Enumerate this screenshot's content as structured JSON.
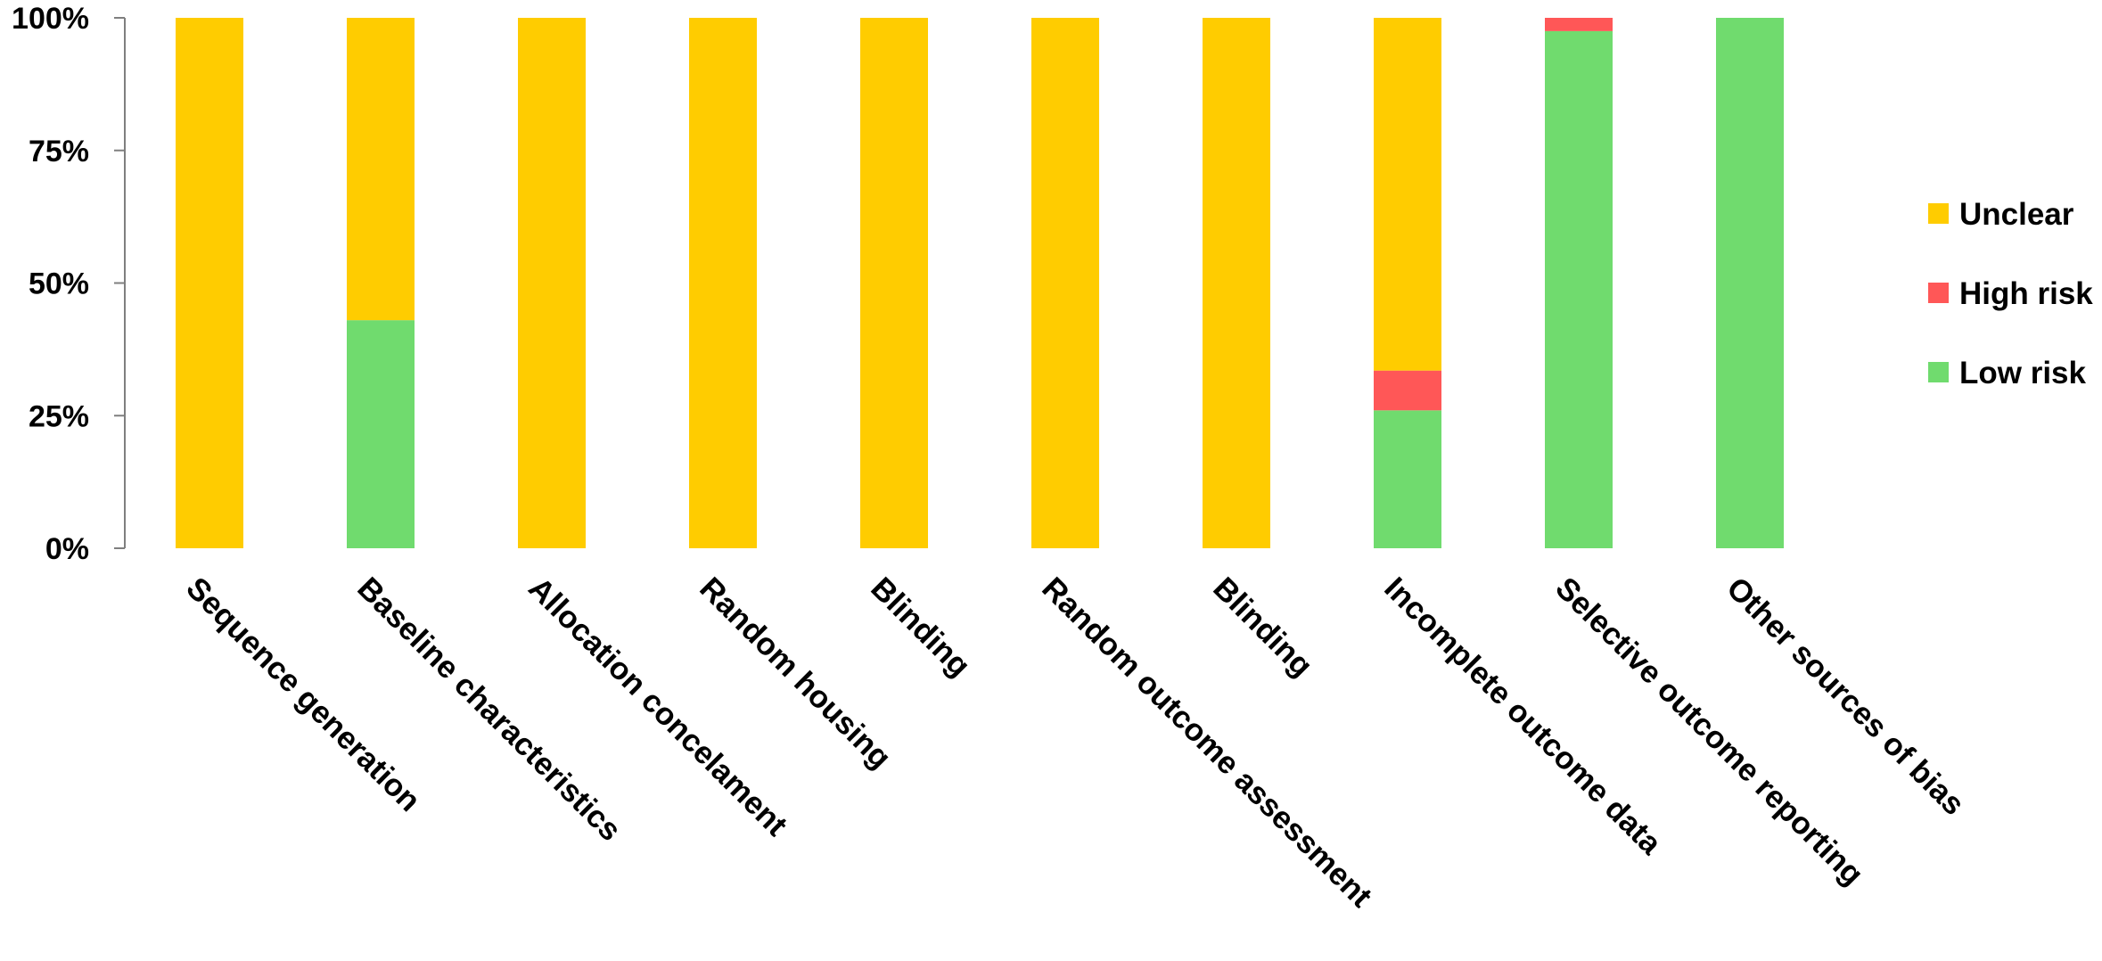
{
  "chart_data": {
    "type": "bar",
    "stacked": true,
    "categories": [
      "Sequence generation",
      "Baseline characteristics",
      "Allocation concelament",
      "Random housing",
      "Blinding",
      "Random outcome assessment",
      "Blinding",
      "Incomplete outcome data",
      "Selective outcome reporting",
      "Other sources of bias"
    ],
    "series": [
      {
        "name": "Low risk",
        "color": "#70db6e",
        "values": [
          0,
          43,
          0,
          0,
          0,
          0,
          0,
          26,
          97.5,
          100
        ]
      },
      {
        "name": "High risk",
        "color": "#ff5757",
        "values": [
          0,
          0,
          0,
          0,
          0,
          0,
          0,
          7.5,
          2.5,
          0
        ]
      },
      {
        "name": "Unclear",
        "color": "#ffcc00",
        "values": [
          100,
          57,
          100,
          100,
          100,
          100,
          100,
          66.5,
          0,
          0
        ]
      }
    ],
    "ylim": [
      0,
      100
    ],
    "yticks": [
      0,
      25,
      50,
      75,
      100
    ],
    "ytick_labels": [
      "0%",
      "25%",
      "50%",
      "75%",
      "100%"
    ],
    "legend_order": [
      "Unclear",
      "High risk",
      "Low risk"
    ],
    "legend_position": "right",
    "grid": false,
    "title": "",
    "xlabel": "",
    "ylabel": ""
  }
}
